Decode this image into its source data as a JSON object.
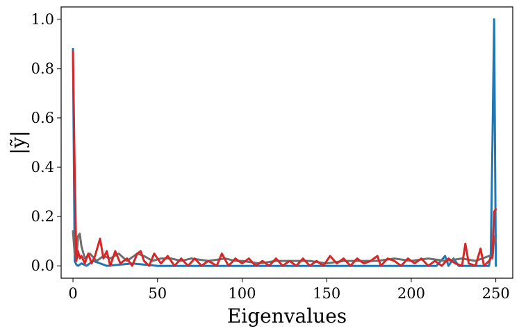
{
  "chart_data": {
    "type": "line",
    "xlabel": "Eigenvalues",
    "ylabel": "|ỹ|",
    "xlim": [
      -7,
      260
    ],
    "ylim": [
      -0.05,
      1.05
    ],
    "xticks": [
      0,
      50,
      100,
      150,
      200,
      250
    ],
    "yticks": [
      0.0,
      0.2,
      0.4,
      0.6,
      0.8,
      1.0
    ],
    "xtick_labels": [
      "0",
      "50",
      "100",
      "150",
      "200",
      "250"
    ],
    "ytick_labels": [
      "0.0",
      "0.2",
      "0.4",
      "0.6",
      "0.8",
      "1.0"
    ],
    "grid": false,
    "legend": "none",
    "series": [
      {
        "color": "#1f77b4",
        "points": [
          [
            0,
            0.88
          ],
          [
            1,
            0.02
          ],
          [
            2,
            0.005
          ],
          [
            3,
            0.0
          ],
          [
            5,
            0.01
          ],
          [
            8,
            0.0
          ],
          [
            12,
            0.02
          ],
          [
            20,
            0.0
          ],
          [
            35,
            0.01
          ],
          [
            50,
            0.0
          ],
          [
            75,
            0.0
          ],
          [
            100,
            0.0
          ],
          [
            125,
            0.0
          ],
          [
            150,
            0.0
          ],
          [
            175,
            0.0
          ],
          [
            200,
            0.0
          ],
          [
            215,
            0.0
          ],
          [
            220,
            0.04
          ],
          [
            222,
            0.0
          ],
          [
            225,
            0.03
          ],
          [
            228,
            0.0
          ],
          [
            235,
            0.0
          ],
          [
            240,
            0.0
          ],
          [
            246,
            0.0
          ],
          [
            247,
            0.05
          ],
          [
            248,
            0.5
          ],
          [
            249,
            1.0
          ],
          [
            250,
            0.0
          ]
        ]
      },
      {
        "color": "#6e6e6e",
        "points": [
          [
            0,
            0.14
          ],
          [
            1,
            0.05
          ],
          [
            2,
            0.02
          ],
          [
            3,
            0.12
          ],
          [
            4,
            0.13
          ],
          [
            5,
            0.08
          ],
          [
            7,
            0.03
          ],
          [
            10,
            0.05
          ],
          [
            14,
            0.02
          ],
          [
            18,
            0.04
          ],
          [
            22,
            0.03
          ],
          [
            27,
            0.05
          ],
          [
            32,
            0.02
          ],
          [
            38,
            0.05
          ],
          [
            42,
            0.04
          ],
          [
            47,
            0.02
          ],
          [
            52,
            0.03
          ],
          [
            58,
            0.03
          ],
          [
            64,
            0.02
          ],
          [
            70,
            0.03
          ],
          [
            80,
            0.02
          ],
          [
            90,
            0.03
          ],
          [
            96,
            0.02
          ],
          [
            100,
            0.02
          ],
          [
            110,
            0.01
          ],
          [
            120,
            0.02
          ],
          [
            130,
            0.02
          ],
          [
            140,
            0.02
          ],
          [
            150,
            0.01
          ],
          [
            160,
            0.02
          ],
          [
            170,
            0.02
          ],
          [
            180,
            0.02
          ],
          [
            190,
            0.03
          ],
          [
            200,
            0.02
          ],
          [
            210,
            0.03
          ],
          [
            220,
            0.02
          ],
          [
            230,
            0.03
          ],
          [
            238,
            0.02
          ],
          [
            242,
            0.03
          ],
          [
            246,
            0.04
          ],
          [
            248,
            0.03
          ],
          [
            249,
            0.12
          ],
          [
            250,
            0.1
          ]
        ]
      },
      {
        "color": "#d62728",
        "points": [
          [
            0,
            0.87
          ],
          [
            1,
            0.39
          ],
          [
            2,
            0.02
          ],
          [
            3,
            0.06
          ],
          [
            4,
            0.03
          ],
          [
            5,
            0.04
          ],
          [
            7,
            0.01
          ],
          [
            9,
            0.05
          ],
          [
            11,
            0.01
          ],
          [
            13,
            0.04
          ],
          [
            16,
            0.11
          ],
          [
            18,
            0.03
          ],
          [
            20,
            0.06
          ],
          [
            22,
            0.0
          ],
          [
            25,
            0.06
          ],
          [
            28,
            0.01
          ],
          [
            32,
            0.03
          ],
          [
            35,
            0.0
          ],
          [
            38,
            0.05
          ],
          [
            40,
            0.06
          ],
          [
            42,
            0.02
          ],
          [
            45,
            0.0
          ],
          [
            48,
            0.05
          ],
          [
            52,
            0.01
          ],
          [
            56,
            0.04
          ],
          [
            60,
            0.0
          ],
          [
            64,
            0.03
          ],
          [
            68,
            0.0
          ],
          [
            72,
            0.03
          ],
          [
            76,
            0.0
          ],
          [
            80,
            0.02
          ],
          [
            85,
            0.0
          ],
          [
            88,
            0.05
          ],
          [
            92,
            0.0
          ],
          [
            96,
            0.03
          ],
          [
            100,
            0.01
          ],
          [
            104,
            0.03
          ],
          [
            108,
            0.0
          ],
          [
            112,
            0.02
          ],
          [
            116,
            0.0
          ],
          [
            120,
            0.03
          ],
          [
            124,
            0.0
          ],
          [
            128,
            0.02
          ],
          [
            132,
            0.0
          ],
          [
            136,
            0.03
          ],
          [
            140,
            0.0
          ],
          [
            144,
            0.02
          ],
          [
            148,
            0.0
          ],
          [
            152,
            0.04
          ],
          [
            156,
            0.01
          ],
          [
            160,
            0.03
          ],
          [
            164,
            0.0
          ],
          [
            168,
            0.03
          ],
          [
            172,
            0.01
          ],
          [
            176,
            0.02
          ],
          [
            180,
            0.04
          ],
          [
            182,
            0.0
          ],
          [
            186,
            0.03
          ],
          [
            190,
            0.02
          ],
          [
            194,
            0.0
          ],
          [
            198,
            0.03
          ],
          [
            202,
            0.01
          ],
          [
            206,
            0.03
          ],
          [
            210,
            0.0
          ],
          [
            214,
            0.02
          ],
          [
            218,
            0.0
          ],
          [
            222,
            0.03
          ],
          [
            226,
            0.01
          ],
          [
            230,
            0.0
          ],
          [
            232,
            0.09
          ],
          [
            234,
            0.01
          ],
          [
            238,
            0.0
          ],
          [
            241,
            0.07
          ],
          [
            243,
            0.0
          ],
          [
            246,
            0.02
          ],
          [
            248,
            0.04
          ],
          [
            249,
            0.22
          ],
          [
            250,
            0.23
          ]
        ]
      }
    ]
  }
}
